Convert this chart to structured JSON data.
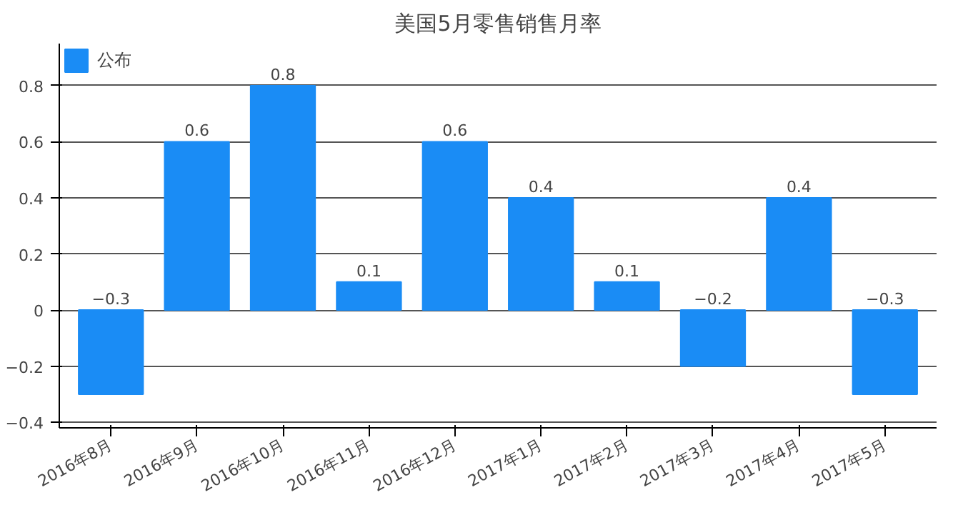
{
  "chart_data": {
    "type": "bar",
    "title": "美国5月零售销售月率",
    "categories": [
      "2016年8月",
      "2016年9月",
      "2016年10月",
      "2016年11月",
      "2016年12月",
      "2017年1月",
      "2017年2月",
      "2017年3月",
      "2017年4月",
      "2017年5月"
    ],
    "series": [
      {
        "name": "公布",
        "color": "#1a8cf5",
        "values": [
          -0.3,
          0.6,
          0.8,
          0.1,
          0.6,
          0.4,
          0.1,
          -0.2,
          0.4,
          -0.3
        ]
      }
    ],
    "ylim": [
      -0.42,
      0.95
    ],
    "yticks": [
      -0.4,
      -0.2,
      0,
      0.2,
      0.4,
      0.6,
      0.8
    ],
    "grid": "y",
    "legend": "top left",
    "data_labels": true
  }
}
